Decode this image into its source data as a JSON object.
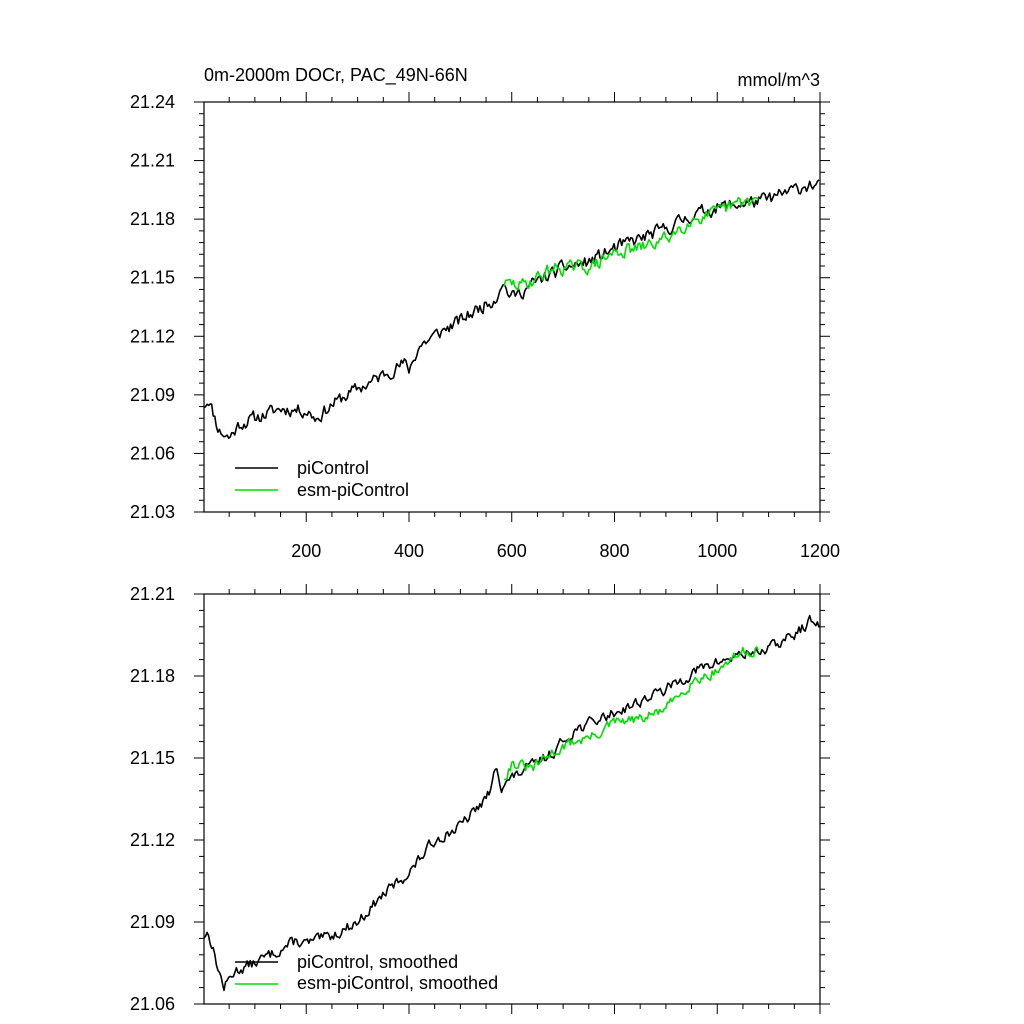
{
  "chart_data": [
    {
      "type": "line",
      "title": "0m-2000m DOCr, PAC_49N-66N",
      "units": "mmol/m^3",
      "xlim": [
        1,
        1200
      ],
      "ylim": [
        21.03,
        21.24
      ],
      "xticks": [
        200,
        400,
        600,
        800,
        1000,
        1200
      ],
      "yticks": [
        21.03,
        21.06,
        21.09,
        21.12,
        21.15,
        21.18,
        21.21,
        21.24
      ],
      "ytick_labels": [
        "21.03",
        "21.06",
        "21.09",
        "21.12",
        "21.15",
        "21.18",
        "21.21",
        "21.24"
      ],
      "show_xtick_labels": true,
      "legend_position": "bottom-left",
      "colors": {
        "piControl": "#000000",
        "esm-piControl": "#00dd00"
      },
      "series": [
        {
          "name": "piControl",
          "x_start": 1,
          "x_end": 1200,
          "anchors": [
            [
              1,
              21.085
            ],
            [
              10,
              21.088
            ],
            [
              30,
              21.072
            ],
            [
              50,
              21.068
            ],
            [
              70,
              21.075
            ],
            [
              100,
              21.078
            ],
            [
              150,
              21.083
            ],
            [
              200,
              21.082
            ],
            [
              220,
              21.078
            ],
            [
              250,
              21.085
            ],
            [
              280,
              21.09
            ],
            [
              300,
              21.093
            ],
            [
              330,
              21.097
            ],
            [
              360,
              21.102
            ],
            [
              390,
              21.106
            ],
            [
              400,
              21.103
            ],
            [
              420,
              21.115
            ],
            [
              460,
              21.122
            ],
            [
              500,
              21.128
            ],
            [
              540,
              21.135
            ],
            [
              570,
              21.14
            ],
            [
              580,
              21.148
            ],
            [
              600,
              21.14
            ],
            [
              650,
              21.148
            ],
            [
              700,
              21.155
            ],
            [
              750,
              21.158
            ],
            [
              800,
              21.165
            ],
            [
              850,
              21.17
            ],
            [
              900,
              21.175
            ],
            [
              950,
              21.182
            ],
            [
              1000,
              21.186
            ],
            [
              1050,
              21.188
            ],
            [
              1100,
              21.19
            ],
            [
              1150,
              21.195
            ],
            [
              1180,
              21.198
            ],
            [
              1200,
              21.196
            ]
          ],
          "noise": 0.0055,
          "seed": 11
        },
        {
          "name": "esm-piControl",
          "x_start": 585,
          "x_end": 1080,
          "anchors": [
            [
              585,
              21.147
            ],
            [
              620,
              21.146
            ],
            [
              650,
              21.15
            ],
            [
              680,
              21.155
            ],
            [
              720,
              21.155
            ],
            [
              760,
              21.156
            ],
            [
              800,
              21.163
            ],
            [
              850,
              21.165
            ],
            [
              900,
              21.17
            ],
            [
              950,
              21.18
            ],
            [
              1000,
              21.183
            ],
            [
              1040,
              21.188
            ],
            [
              1080,
              21.19
            ]
          ],
          "noise": 0.0055,
          "seed": 29
        }
      ]
    },
    {
      "type": "line",
      "title": "",
      "xlim": [
        1,
        1200
      ],
      "ylim": [
        21.06,
        21.21
      ],
      "xticks": [
        200,
        400,
        600,
        800,
        1000,
        1200
      ],
      "yticks": [
        21.06,
        21.09,
        21.12,
        21.15,
        21.18,
        21.21
      ],
      "ytick_labels": [
        "21.06",
        "21.09",
        "21.12",
        "21.15",
        "21.18",
        "21.21"
      ],
      "show_xtick_labels": false,
      "legend_position": "bottom-left",
      "colors": {
        "piControl": "#000000",
        "esm-piControl": "#00dd00"
      },
      "series": [
        {
          "name": "piControl, smoothed",
          "x_start": 1,
          "x_end": 1200,
          "anchors": [
            [
              1,
              21.085
            ],
            [
              10,
              21.086
            ],
            [
              30,
              21.072
            ],
            [
              40,
              21.066
            ],
            [
              60,
              21.072
            ],
            [
              100,
              21.075
            ],
            [
              150,
              21.08
            ],
            [
              180,
              21.083
            ],
            [
              200,
              21.082
            ],
            [
              250,
              21.085
            ],
            [
              300,
              21.09
            ],
            [
              350,
              21.1
            ],
            [
              400,
              21.108
            ],
            [
              450,
              21.12
            ],
            [
              500,
              21.125
            ],
            [
              540,
              21.133
            ],
            [
              560,
              21.138
            ],
            [
              570,
              21.148
            ],
            [
              580,
              21.14
            ],
            [
              620,
              21.145
            ],
            [
              680,
              21.152
            ],
            [
              720,
              21.16
            ],
            [
              780,
              21.165
            ],
            [
              840,
              21.17
            ],
            [
              900,
              21.175
            ],
            [
              960,
              21.182
            ],
            [
              1000,
              21.185
            ],
            [
              1050,
              21.188
            ],
            [
              1100,
              21.19
            ],
            [
              1150,
              21.195
            ],
            [
              1180,
              21.2
            ],
            [
              1200,
              21.198
            ]
          ],
          "noise": 0.0032,
          "seed": 13
        },
        {
          "name": "esm-piControl, smoothed",
          "x_start": 585,
          "x_end": 1080,
          "anchors": [
            [
              585,
              21.143
            ],
            [
              600,
              21.148
            ],
            [
              640,
              21.146
            ],
            [
              680,
              21.152
            ],
            [
              720,
              21.156
            ],
            [
              760,
              21.158
            ],
            [
              800,
              21.163
            ],
            [
              850,
              21.164
            ],
            [
              900,
              21.168
            ],
            [
              950,
              21.178
            ],
            [
              1000,
              21.182
            ],
            [
              1040,
              21.188
            ],
            [
              1080,
              21.19
            ]
          ],
          "noise": 0.0032,
          "seed": 31
        }
      ]
    }
  ]
}
